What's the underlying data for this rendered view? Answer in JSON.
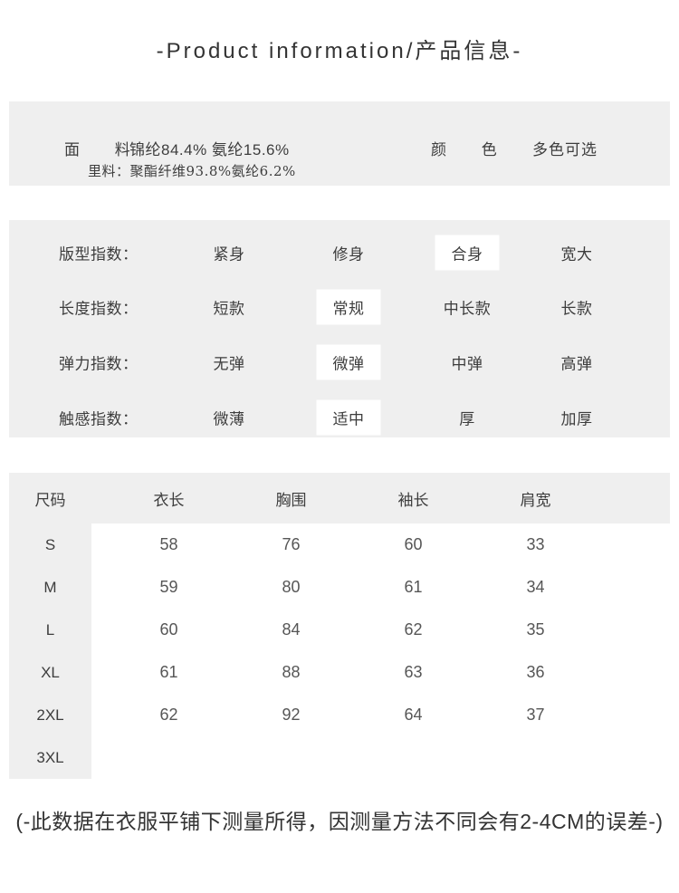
{
  "title": "-Product information/产品信息-",
  "colors": {
    "panel_bg": "#efefef",
    "highlight_bg": "#ffffff",
    "text": "#3d3d3d"
  },
  "fabric_panel": {
    "fabric_label": "面 料",
    "fabric_value": "锦纶84.4% 氨纶15.6%",
    "lining_line": "里料：聚酯纤维93.8%氨纶6.2%",
    "color_label": "颜 色",
    "color_value": "多色可选"
  },
  "index_panel": {
    "rows": [
      {
        "label": "版型指数：",
        "options": [
          "紧身",
          "修身",
          "合身",
          "宽大"
        ],
        "selected": 2
      },
      {
        "label": "长度指数：",
        "options": [
          "短款",
          "常规",
          "中长款",
          "长款"
        ],
        "selected": 1
      },
      {
        "label": "弹力指数：",
        "options": [
          "无弹",
          "微弹",
          "中弹",
          "高弹"
        ],
        "selected": 1
      },
      {
        "label": "触感指数：",
        "options": [
          "微薄",
          "适中",
          "厚",
          "加厚"
        ],
        "selected": 1
      }
    ]
  },
  "size_table": {
    "headers": [
      "尺码",
      "衣长",
      "胸围",
      "袖长",
      "肩宽"
    ],
    "rows": [
      {
        "size": "S",
        "values": [
          "58",
          "76",
          "60",
          "33"
        ]
      },
      {
        "size": "M",
        "values": [
          "59",
          "80",
          "61",
          "34"
        ]
      },
      {
        "size": "L",
        "values": [
          "60",
          "84",
          "62",
          "35"
        ]
      },
      {
        "size": "XL",
        "values": [
          "61",
          "88",
          "63",
          "36"
        ]
      },
      {
        "size": "2XL",
        "values": [
          "62",
          "92",
          "64",
          "37"
        ]
      },
      {
        "size": "3XL",
        "values": [
          "",
          "",
          "",
          ""
        ]
      }
    ]
  },
  "footnote": "(-此数据在衣服平铺下测量所得，因测量方法不同会有2-4CM的误差-)"
}
